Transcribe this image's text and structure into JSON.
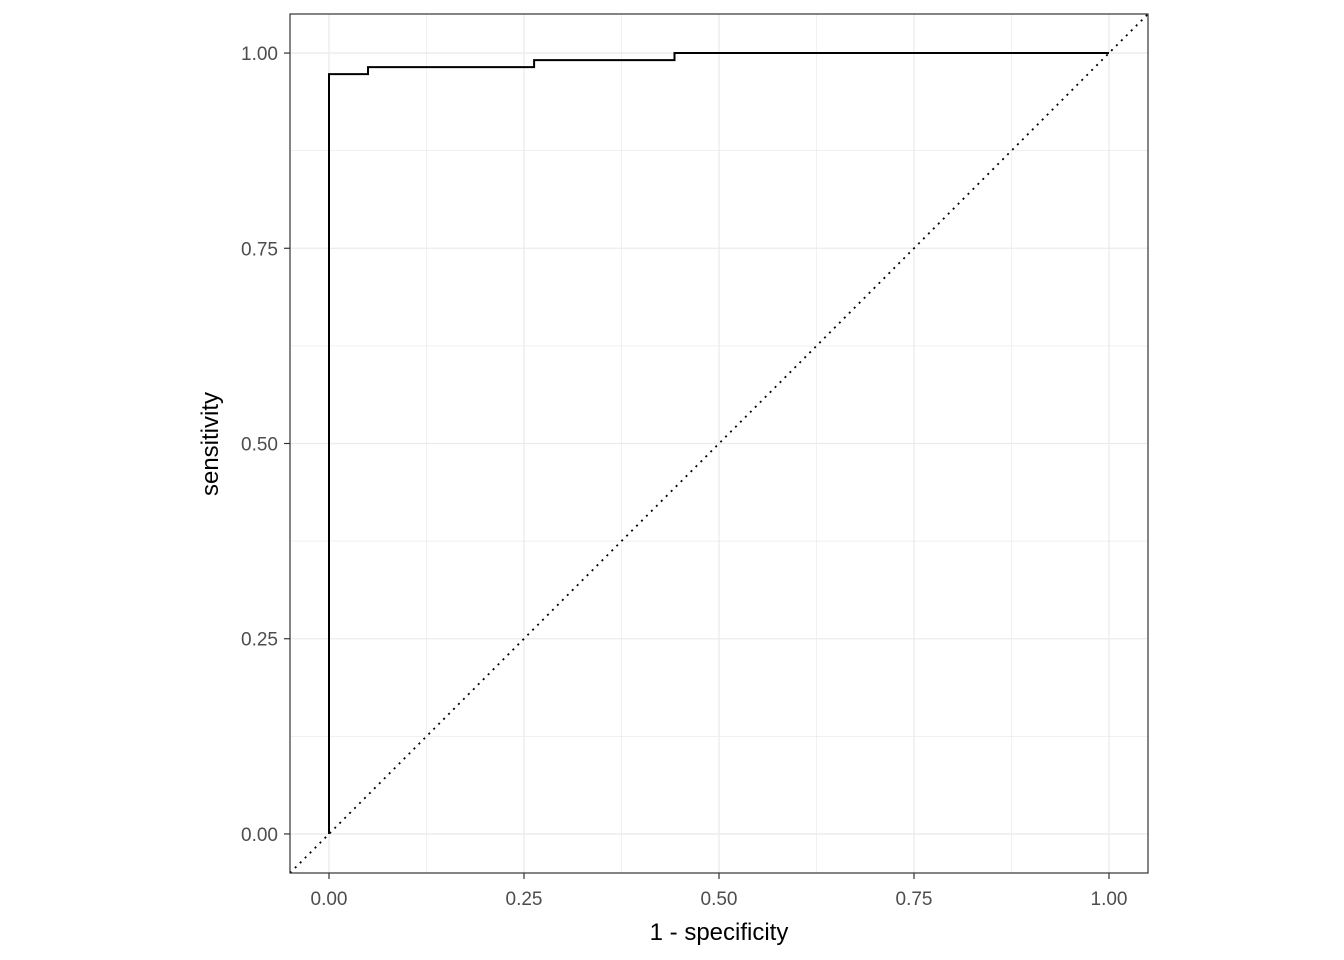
{
  "chart_data": {
    "type": "line",
    "title": "",
    "xlabel": "1 - specificity",
    "ylabel": "sensitivity",
    "xlim": [
      -0.05,
      1.05
    ],
    "ylim": [
      -0.05,
      1.05
    ],
    "grid": true,
    "x_ticks": [
      "0.00",
      "0.25",
      "0.50",
      "0.75",
      "1.00"
    ],
    "y_ticks": [
      "0.00",
      "0.25",
      "0.50",
      "0.75",
      "1.00"
    ],
    "series": [
      {
        "style": "step",
        "color": "#000000",
        "points": [
          [
            0,
            0
          ],
          [
            0,
            0.973
          ],
          [
            0.05,
            0.973
          ],
          [
            0.05,
            0.982
          ],
          [
            0.263,
            0.982
          ],
          [
            0.263,
            0.991
          ],
          [
            0.443,
            0.991
          ],
          [
            0.443,
            1.0
          ],
          [
            1.0,
            1.0
          ]
        ]
      }
    ],
    "reference_line": {
      "style": "dotted",
      "from": [
        -0.05,
        -0.05
      ],
      "to": [
        1.05,
        1.05
      ],
      "color": "#000000"
    }
  }
}
